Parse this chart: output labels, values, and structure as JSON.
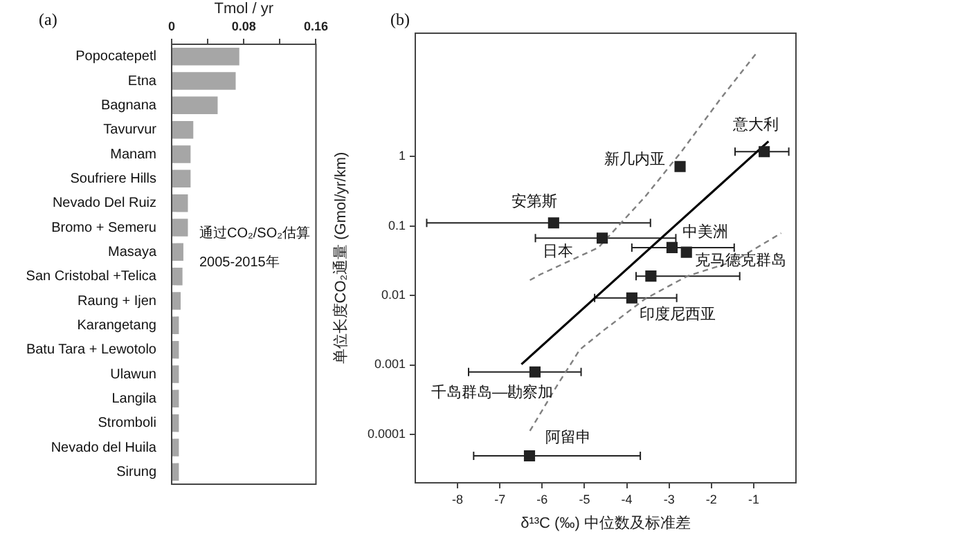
{
  "chart_data": [
    {
      "type": "bar",
      "orientation": "horizontal",
      "title": "(a)",
      "xlabel": "Tmol / yr",
      "categories": [
        "Popocatepetl",
        "Etna",
        "Bagnana",
        "Tavurvur",
        "Manam",
        "Soufriere Hills",
        "Nevado Del Ruiz",
        "Bromo + Semeru",
        "Masaya",
        "San Cristobal +Telica",
        "Raung + Ijen",
        "Karangetang",
        "Batu Tara + Lewotolo",
        "Ulawun",
        "Langila",
        "Stromboli",
        "Nevado del Huila",
        "Sirung"
      ],
      "values": [
        0.075,
        0.071,
        0.051,
        0.024,
        0.021,
        0.021,
        0.018,
        0.018,
        0.013,
        0.012,
        0.01,
        0.008,
        0.008,
        0.008,
        0.008,
        0.008,
        0.008,
        0.008
      ],
      "color": "#a6a6a6",
      "xlim": [
        0,
        0.16
      ],
      "xticks": [
        0,
        {
          "value": 0.04,
          "label": null
        },
        0.08,
        {
          "value": 0.12,
          "label": null
        },
        0.16
      ],
      "grid": false,
      "legend": false,
      "annotations": [
        "通过CO₂/SO₂估算",
        "2005-2015年"
      ]
    },
    {
      "type": "scatter",
      "title": "(b)",
      "xlabel": "δ¹³C (‰) 中位数及标准差",
      "ylabel": "单位长度CO₂通量 (Gmol/yr/km)",
      "log": "y",
      "xlim": [
        -9,
        0
      ],
      "xticks": [
        -8,
        -7,
        -6,
        -5,
        -4,
        -3,
        -2,
        -1
      ],
      "ylim": [
        2e-05,
        60
      ],
      "yticks": [
        0.0001,
        0.001,
        0.01,
        0.1,
        1
      ],
      "grid": false,
      "legend": false,
      "series": [
        {
          "type": "scatter",
          "marker": "square",
          "color": "#222222",
          "x": [
            -0.75,
            -2.74,
            -5.73,
            -4.58,
            -2.93,
            -2.59,
            -3.43,
            -3.88,
            -6.17,
            -6.3
          ],
          "values": [
            1.18,
            0.72,
            0.111,
            0.067,
            0.049,
            0.042,
            0.019,
            0.0092,
            0.00079,
            4.9e-05
          ],
          "xerrors": [
            [
              -1.44,
              -0.17
            ],
            null,
            [
              -8.73,
              -3.44
            ],
            [
              -6.16,
              -2.84
            ],
            [
              -3.88,
              -1.46
            ],
            null,
            [
              -3.78,
              -1.33
            ],
            [
              -4.76,
              -2.82
            ],
            [
              -7.74,
              -5.08
            ],
            [
              -7.62,
              -3.68
            ]
          ]
        },
        {
          "type": "line",
          "marker": "none",
          "color": "#000000",
          "line_style": "solid",
          "x": [
            -6.49,
            -0.65
          ],
          "values": [
            0.00102,
            1.66
          ]
        },
        {
          "type": "line",
          "marker": "none",
          "color": "#808080",
          "line_style": "dashed",
          "x": [
            -6.29,
            -6.05,
            -4.67,
            -3.57,
            -2.69,
            -1.8,
            -0.9
          ],
          "values": [
            0.0166,
            0.02,
            0.049,
            0.263,
            1.22,
            6.6,
            33
          ]
        },
        {
          "type": "line",
          "marker": "none",
          "color": "#808080",
          "line_style": "dashed",
          "x": [
            -6.29,
            -5.66,
            -5.11,
            -4.56,
            -3.57,
            -2.57,
            -1.47,
            -0.35
          ],
          "values": [
            0.000112,
            0.00049,
            0.00166,
            0.0031,
            0.0089,
            0.019,
            0.031,
            0.079
          ]
        }
      ],
      "annotations": [
        {
          "text": "意大利",
          "x": -0.75,
          "y": 1.18
        },
        {
          "text": "新几内亚",
          "x": -2.74,
          "y": 0.72
        },
        {
          "text": "安第斯",
          "x": -5.73,
          "y": 0.111
        },
        {
          "text": "日本",
          "x": -4.58,
          "y": 0.067
        },
        {
          "text": "中美洲",
          "x": -2.93,
          "y": 0.049
        },
        {
          "text": "克马德克群岛",
          "x": -2.59,
          "y": 0.042
        },
        {
          "text": "印度尼西亚",
          "x": -3.88,
          "y": 0.0092
        },
        {
          "text": "千岛群岛—勘察加",
          "x": -6.17,
          "y": 0.00079
        },
        {
          "text": "阿留申",
          "x": -6.3,
          "y": 4.9e-05
        }
      ]
    }
  ]
}
